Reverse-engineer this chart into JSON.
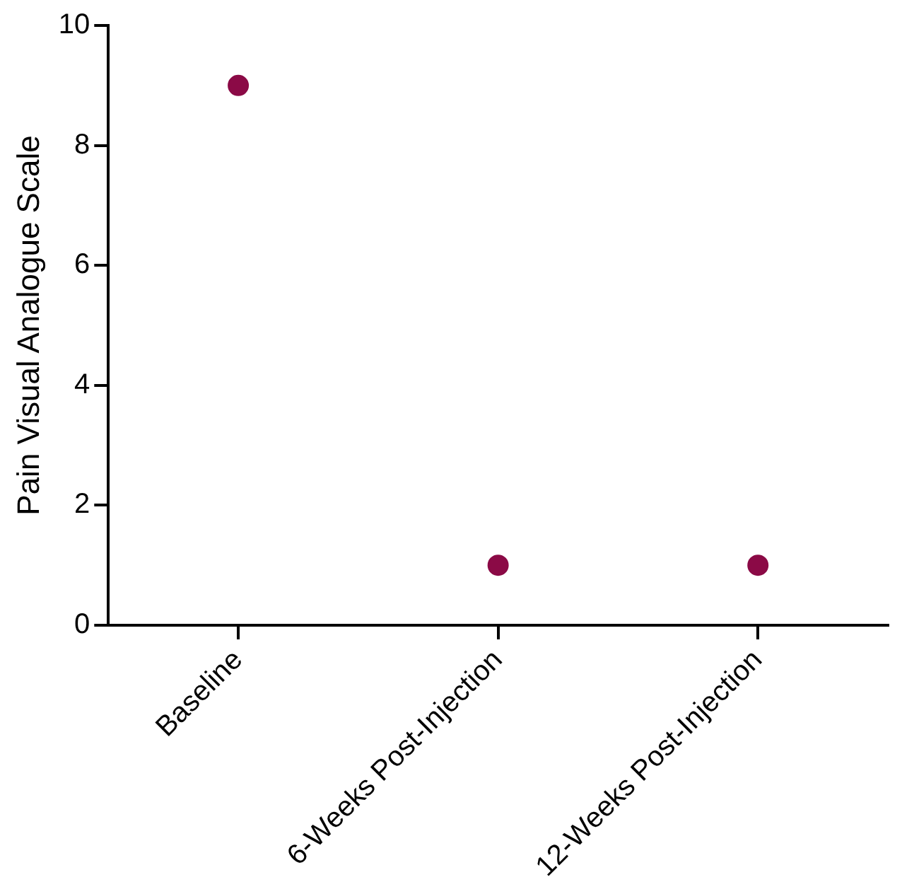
{
  "chart_data": {
    "type": "scatter",
    "ylabel": "Pain Visual Analogue Scale",
    "categories": [
      "Baseline",
      "6-Weeks Post-Injection",
      "12-Weeks Post-Injection"
    ],
    "series": [
      {
        "color": "#8b0a46",
        "values": [
          9,
          1,
          1
        ]
      }
    ],
    "ylim": [
      0,
      10
    ],
    "yticks": [
      0,
      2,
      4,
      6,
      8,
      10
    ],
    "grid": false,
    "legend": false,
    "marker": "circle"
  }
}
